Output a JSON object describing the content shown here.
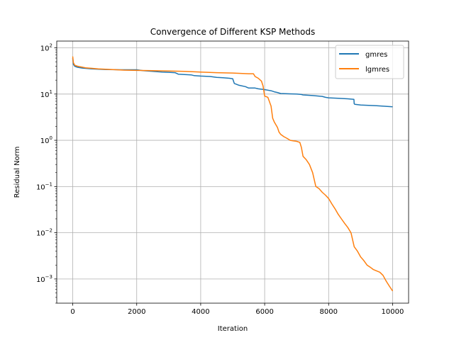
{
  "chart_data": {
    "type": "line",
    "title": "Convergence of Different KSP Methods",
    "xlabel": "Iteration",
    "ylabel": "Residual Norm",
    "xlim": [
      -500,
      10500
    ],
    "ylim": [
      0.0003,
      140
    ],
    "yscale": "log",
    "grid": true,
    "legend_position": "top-right",
    "x_ticks": [
      0,
      2000,
      4000,
      6000,
      8000,
      10000
    ],
    "x_tick_labels": [
      "0",
      "2000",
      "4000",
      "6000",
      "8000",
      "10000"
    ],
    "y_ticks": [
      0.001,
      0.01,
      0.1,
      1,
      10,
      100
    ],
    "y_tick_labels": [
      {
        "base": "10",
        "exp": "−3"
      },
      {
        "base": "10",
        "exp": "−2"
      },
      {
        "base": "10",
        "exp": "−1"
      },
      {
        "base": "10",
        "exp": "0"
      },
      {
        "base": "10",
        "exp": "1"
      },
      {
        "base": "10",
        "exp": "2"
      }
    ],
    "series": [
      {
        "name": "gmres",
        "color": "#1f77b4",
        "x": [
          0,
          20,
          60,
          150,
          300,
          600,
          1000,
          1500,
          2000,
          2200,
          2500,
          2800,
          3000,
          3200,
          3300,
          3500,
          3700,
          3800,
          4000,
          4300,
          4500,
          4700,
          4900,
          5000,
          5050,
          5200,
          5400,
          5500,
          5700,
          5800,
          6000,
          6200,
          6300,
          6400,
          6500,
          6800,
          7000,
          7150,
          7200,
          7500,
          7800,
          7900,
          8000,
          8300,
          8600,
          8790,
          8800,
          8820,
          9000,
          9500,
          10000
        ],
        "y": [
          60,
          44,
          40,
          38,
          36.5,
          35,
          34,
          33.5,
          33.5,
          32,
          31,
          30,
          29.5,
          29,
          27,
          26.5,
          26,
          25,
          24.5,
          24,
          23,
          22.5,
          22,
          21.5,
          17,
          15.5,
          14.5,
          13.5,
          13.5,
          13,
          12.5,
          11.8,
          11.2,
          10.8,
          10.3,
          10.1,
          10,
          9.8,
          9.6,
          9.3,
          8.9,
          8.5,
          8.3,
          8.1,
          7.9,
          7.7,
          6.2,
          6,
          5.8,
          5.6,
          5.3
        ]
      },
      {
        "name": "lgmres",
        "color": "#ff7f0e",
        "x": [
          0,
          20,
          60,
          150,
          400,
          800,
          1200,
          1600,
          2000,
          2500,
          3000,
          3500,
          4000,
          4500,
          5000,
          5500,
          5650,
          5700,
          5800,
          5900,
          5950,
          6000,
          6050,
          6100,
          6200,
          6250,
          6300,
          6400,
          6450,
          6500,
          6600,
          6700,
          6800,
          6900,
          7000,
          7100,
          7150,
          7200,
          7300,
          7400,
          7500,
          7600,
          7700,
          7800,
          7900,
          8000,
          8100,
          8200,
          8300,
          8400,
          8500,
          8600,
          8700,
          8800,
          8900,
          9000,
          9100,
          9200,
          9300,
          9400,
          9600,
          9700,
          9800,
          9900,
          10000
        ],
        "y": [
          65,
          48,
          42,
          40,
          37,
          35,
          34,
          33,
          32.5,
          32,
          31.5,
          31,
          30,
          29,
          28.5,
          27.5,
          27.5,
          24,
          22,
          19,
          15,
          9,
          8.8,
          8.5,
          5.5,
          3,
          2.5,
          1.9,
          1.5,
          1.35,
          1.2,
          1.1,
          1.0,
          0.97,
          0.95,
          0.9,
          0.7,
          0.45,
          0.38,
          0.3,
          0.2,
          0.1,
          0.09,
          0.075,
          0.065,
          0.055,
          0.042,
          0.033,
          0.025,
          0.02,
          0.016,
          0.013,
          0.01,
          0.005,
          0.004,
          0.003,
          0.0025,
          0.002,
          0.0018,
          0.0016,
          0.0014,
          0.0012,
          0.0009,
          0.0007,
          0.00055
        ]
      }
    ]
  }
}
